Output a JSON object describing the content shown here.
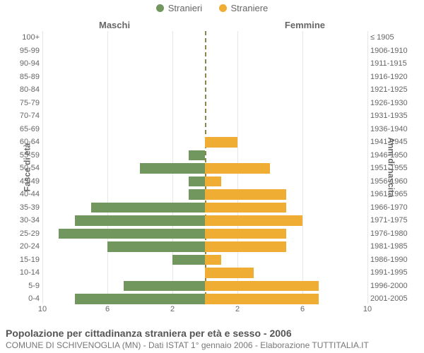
{
  "legend": {
    "male": {
      "label": "Stranieri",
      "color": "#71965e"
    },
    "female": {
      "label": "Straniere",
      "color": "#f0ad33"
    }
  },
  "headers": {
    "left": "Maschi",
    "right": "Femmine"
  },
  "y_axis": {
    "left_title": "Fasce di età",
    "right_title": "Anni di nascita"
  },
  "x_axis": {
    "max": 10,
    "ticks": [
      10,
      6,
      2,
      2,
      6,
      10
    ],
    "gridline_color": "#e6e6e6"
  },
  "colors": {
    "male_bar": "#71965e",
    "female_bar": "#f0ad33",
    "background": "#ffffff",
    "text": "#666666",
    "center_line": "#555500"
  },
  "rows": [
    {
      "age": "100+",
      "birth": "≤ 1905",
      "male": 0,
      "female": 0
    },
    {
      "age": "95-99",
      "birth": "1906-1910",
      "male": 0,
      "female": 0
    },
    {
      "age": "90-94",
      "birth": "1911-1915",
      "male": 0,
      "female": 0
    },
    {
      "age": "85-89",
      "birth": "1916-1920",
      "male": 0,
      "female": 0
    },
    {
      "age": "80-84",
      "birth": "1921-1925",
      "male": 0,
      "female": 0
    },
    {
      "age": "75-79",
      "birth": "1926-1930",
      "male": 0,
      "female": 0
    },
    {
      "age": "70-74",
      "birth": "1931-1935",
      "male": 0,
      "female": 0
    },
    {
      "age": "65-69",
      "birth": "1936-1940",
      "male": 0,
      "female": 0
    },
    {
      "age": "60-64",
      "birth": "1941-1945",
      "male": 0,
      "female": 2
    },
    {
      "age": "55-59",
      "birth": "1946-1950",
      "male": 1,
      "female": 0
    },
    {
      "age": "50-54",
      "birth": "1951-1955",
      "male": 4,
      "female": 4
    },
    {
      "age": "45-49",
      "birth": "1956-1960",
      "male": 1,
      "female": 1
    },
    {
      "age": "40-44",
      "birth": "1961-1965",
      "male": 1,
      "female": 5
    },
    {
      "age": "35-39",
      "birth": "1966-1970",
      "male": 7,
      "female": 5
    },
    {
      "age": "30-34",
      "birth": "1971-1975",
      "male": 8,
      "female": 6
    },
    {
      "age": "25-29",
      "birth": "1976-1980",
      "male": 9,
      "female": 5
    },
    {
      "age": "20-24",
      "birth": "1981-1985",
      "male": 6,
      "female": 5
    },
    {
      "age": "15-19",
      "birth": "1986-1990",
      "male": 2,
      "female": 1
    },
    {
      "age": "10-14",
      "birth": "1991-1995",
      "male": 0,
      "female": 3
    },
    {
      "age": "5-9",
      "birth": "1996-2000",
      "male": 5,
      "female": 7
    },
    {
      "age": "0-4",
      "birth": "2001-2005",
      "male": 8,
      "female": 7
    }
  ],
  "footer": {
    "title": "Popolazione per cittadinanza straniera per età e sesso - 2006",
    "subtitle": "COMUNE DI SCHIVENOGLIA (MN) - Dati ISTAT 1° gennaio 2006 - Elaborazione TUTTITALIA.IT"
  },
  "chart_type": "population-pyramid"
}
